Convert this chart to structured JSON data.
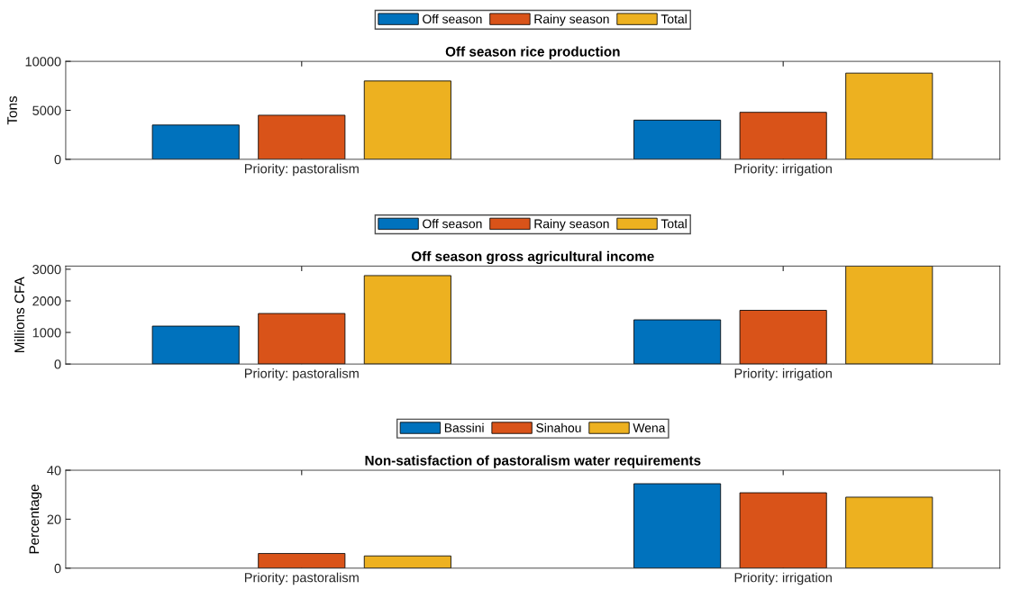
{
  "chart_data": [
    {
      "type": "bar",
      "title": "Off season rice production",
      "ylabel": "Tons",
      "categories": [
        "Priority: pastoralism",
        "Priority: irrigation"
      ],
      "series": [
        {
          "name": "Off season",
          "color": "#0072bd",
          "values": [
            3500,
            4000
          ]
        },
        {
          "name": "Rainy season",
          "color": "#d95319",
          "values": [
            4500,
            4800
          ]
        },
        {
          "name": "Total",
          "color": "#edb120",
          "values": [
            8000,
            8800
          ]
        }
      ],
      "ylim": [
        0,
        10000
      ],
      "yticks": [
        0,
        5000,
        10000
      ],
      "legend": "top",
      "grid": false
    },
    {
      "type": "bar",
      "title": "Off season gross agricultural income",
      "ylabel": "Millions CFA",
      "categories": [
        "Priority: pastoralism",
        "Priority: irrigation"
      ],
      "series": [
        {
          "name": "Off season",
          "color": "#0072bd",
          "values": [
            1200,
            1400
          ]
        },
        {
          "name": "Rainy season",
          "color": "#d95319",
          "values": [
            1600,
            1700
          ]
        },
        {
          "name": "Total",
          "color": "#edb120",
          "values": [
            2800,
            3100
          ]
        }
      ],
      "ylim": [
        0,
        3100
      ],
      "yticks": [
        0,
        1000,
        2000,
        3000
      ],
      "legend": "top",
      "grid": false
    },
    {
      "type": "bar",
      "title": "Non-satisfaction of pastoralism water requirements",
      "ylabel": "Percentage",
      "categories": [
        "Priority: pastoralism",
        "Priority: irrigation"
      ],
      "series": [
        {
          "name": "Bassini",
          "color": "#0072bd",
          "values": [
            null,
            34.5
          ]
        },
        {
          "name": "Sinahou",
          "color": "#d95319",
          "values": [
            6,
            30.8
          ]
        },
        {
          "name": "Wena",
          "color": "#edb120",
          "values": [
            5,
            29
          ]
        }
      ],
      "ylim": [
        0,
        40
      ],
      "yticks": [
        0,
        20,
        40
      ],
      "legend": "top",
      "grid": false
    }
  ]
}
